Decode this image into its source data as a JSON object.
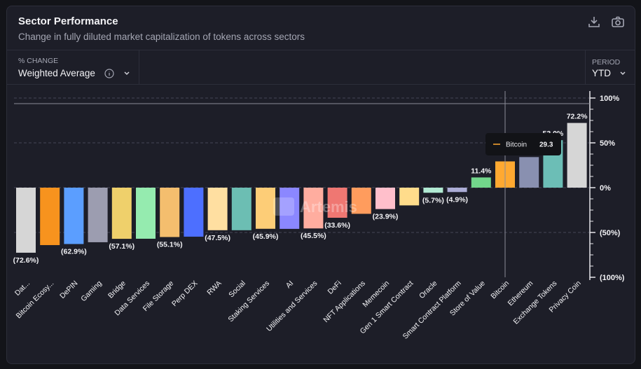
{
  "header": {
    "title": "Sector Performance",
    "subtitle": "Change in fully diluted market capitalization of tokens across sectors"
  },
  "controls": {
    "change_label": "% CHANGE",
    "change_value": "Weighted Average",
    "period_label": "PERIOD",
    "period_value": "YTD"
  },
  "icons": [
    "download-icon",
    "camera-icon",
    "info-icon",
    "chevron-down-icon"
  ],
  "watermark": "Artemis",
  "tooltip": {
    "series": "Bitcoin",
    "value": "29.3",
    "color": "#ffa931"
  },
  "chart_data": {
    "type": "bar",
    "categories": [
      "Dat...",
      "Bitcoin Ecosy...",
      "DePIN",
      "Gaming",
      "Bridge",
      "Data Services",
      "File Storage",
      "Perp DEX",
      "RWA",
      "Social",
      "Staking Services",
      "AI",
      "Utilities and Services",
      "DeFi",
      "NFT Applications",
      "Memecoin",
      "Gen 1 Smart Contract",
      "Oracle",
      "Smart Contract Platform",
      "Store of Value",
      "Bitcoin",
      "Ethereum",
      "Exchange Tokens",
      "Privacy Coin"
    ],
    "values": [
      -72.6,
      -64.1,
      -62.9,
      -60.9,
      -57.1,
      -57.0,
      -55.1,
      -54.7,
      -47.5,
      -47.5,
      -45.9,
      -46.0,
      -45.5,
      -33.6,
      -29.2,
      -23.9,
      -19.8,
      -5.7,
      -4.9,
      11.4,
      29.3,
      34.1,
      53.0,
      72.2
    ],
    "data_labels": [
      "(72.6%)",
      "",
      "(62.9%)",
      "",
      "(57.1%)",
      "",
      "(55.1%)",
      "",
      "(47.5%)",
      "",
      "(45.9%)",
      "",
      "(45.5%)",
      "(33.6%)",
      "",
      "(23.9%)",
      "",
      "(5.7%)",
      "(4.9%)",
      "11.4%",
      "",
      "",
      "53.0%",
      "72.2%"
    ],
    "colors": [
      "#d6d6d6",
      "#f7931e",
      "#5b9eff",
      "#9c9db0",
      "#efd06b",
      "#95ebaf",
      "#f4be6e",
      "#4d6fff",
      "#ffdfa1",
      "#6cbeb3",
      "#fdcd77",
      "#8b87ff",
      "#ffad9f",
      "#ef7772",
      "#ff9c5d",
      "#ffbfcb",
      "#ffdc8b",
      "#b1ead3",
      "#acadd6",
      "#72d68b",
      "#ffa931",
      "#8990b0",
      "#6cbeb6",
      "#d6d6d6"
    ],
    "yticks": [
      "100%",
      "50%",
      "0%",
      "(50%)",
      "(100%)"
    ],
    "ylim": [
      -100,
      100
    ],
    "grid": true
  }
}
